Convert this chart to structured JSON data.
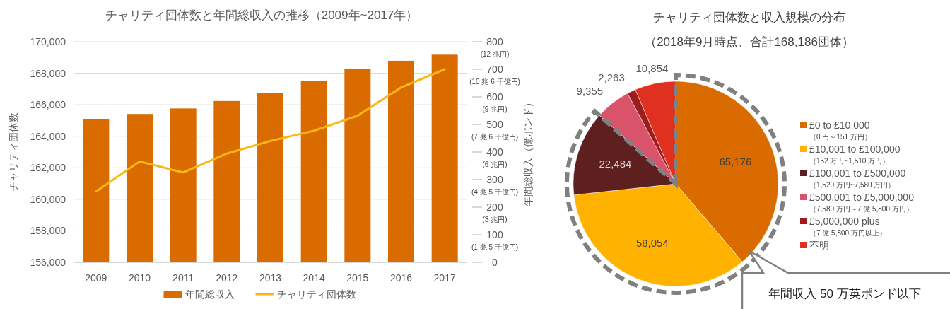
{
  "chart_data": [
    {
      "type": "bar",
      "title": "チャリティ団体数と年間総収入の推移（2009年~2017年）",
      "ylabel": "チャリティ団体数",
      "y2label": "年間総収入（億ポンド）",
      "categories": [
        "2009",
        "2010",
        "2011",
        "2012",
        "2013",
        "2014",
        "2015",
        "2016",
        "2017"
      ],
      "series": [
        {
          "name": "年間総収入",
          "type": "bar",
          "axis": "y2",
          "color": "#d96b00",
          "values": [
            518,
            538,
            558,
            585,
            615,
            658,
            701,
            731,
            753
          ]
        },
        {
          "name": "チャリティ団体数",
          "type": "line",
          "axis": "y",
          "color": "#fbb715",
          "values": [
            160500,
            162400,
            161700,
            162900,
            163700,
            164350,
            165300,
            167100,
            168250
          ]
        }
      ],
      "ylim": [
        156000,
        170000
      ],
      "yticks": [
        {
          "value": 156000,
          "label": "156,000"
        },
        {
          "value": 158000,
          "label": "158,000"
        },
        {
          "value": 160000,
          "label": "160,000"
        },
        {
          "value": 162000,
          "label": "162,000"
        },
        {
          "value": 164000,
          "label": "164,000"
        },
        {
          "value": 166000,
          "label": "166,000"
        },
        {
          "value": 168000,
          "label": "168,000"
        },
        {
          "value": 170000,
          "label": "170,000"
        }
      ],
      "y2lim": [
        0,
        800
      ],
      "y2ticks": [
        0,
        100,
        200,
        300,
        400,
        500,
        600,
        700,
        800
      ],
      "annotations": [
        "(1 兆 5 千億円)",
        "(3 兆円)",
        "(4 兆 5 千億円)",
        "(6 兆円)",
        "(7 兆 6 千億円)",
        "(9 兆円)",
        "(10 兆 6 千億円)",
        "(12 兆円)"
      ],
      "grid": "y",
      "legend": "bottom",
      "marker": "none",
      "line_style": "solid"
    },
    {
      "type": "pie",
      "title": "チャリティ団体数と収入規模の分布",
      "subtitle": "（2018年9月時点、合計168,186団体）",
      "categories": [
        "£0 to £10,000\n（0 円～151 万円）",
        "£10,001 to £100,000\n（152 万円~1,510 万円）",
        "£100,001 to £500,000\n（1,520 万円~7,580 万円）",
        "£500,001 to £5,000,000\n（7,580 万円～7 億 5,800 万円）",
        "£5,000,000 plus\n（7 億 5,800 万円以上）",
        "不明"
      ],
      "values": [
        65176,
        58054,
        22484,
        9355,
        2263,
        10854
      ],
      "colors": [
        "#d96b00",
        "#ffb300",
        "#5e1f1f",
        "#d9546b",
        "#a01c1c",
        "#e03020"
      ],
      "value_labels": [
        "65,176",
        "58,054",
        "22,484",
        "9,355",
        "2,263",
        "10,854"
      ],
      "legend": "right",
      "annotations": [
        "年間収入 50 万英ポンド以下"
      ]
    }
  ]
}
